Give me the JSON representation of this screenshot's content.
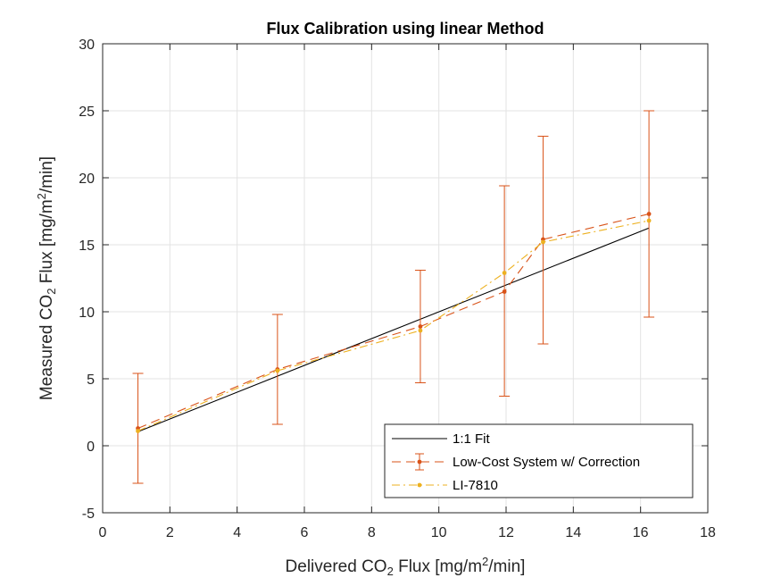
{
  "chart_data": {
    "type": "line",
    "title": "Flux Calibration using linear Method",
    "xlabel": {
      "prefix": "Delivered CO",
      "sub": "2",
      "mid": " Flux [mg/m",
      "sup": "2",
      "suffix": "/min]"
    },
    "ylabel": {
      "prefix": "Measured CO",
      "sub": "2",
      "mid": " Flux [mg/m",
      "sup": "2",
      "suffix": "/min]"
    },
    "xlim": [
      0,
      18
    ],
    "ylim": [
      -5,
      30
    ],
    "xticks": [
      0,
      2,
      4,
      6,
      8,
      10,
      12,
      14,
      16,
      18
    ],
    "yticks": [
      -5,
      0,
      5,
      10,
      15,
      20,
      25,
      30
    ],
    "grid": true,
    "legend_position": "bottom-right",
    "series": [
      {
        "name": "1:1 Fit",
        "style": "solid",
        "color": "#000000",
        "x": [
          1.05,
          16.25
        ],
        "y": [
          1.05,
          16.25
        ]
      },
      {
        "name": "Low-Cost System w/ Correction",
        "style": "dashed",
        "color": "#D95319",
        "marker": "dot",
        "x": [
          1.05,
          5.2,
          9.45,
          11.95,
          13.1,
          16.25
        ],
        "y": [
          1.3,
          5.7,
          8.9,
          11.5,
          15.4,
          17.3
        ],
        "err_low": [
          -2.8,
          1.6,
          4.7,
          3.7,
          7.6,
          9.6
        ],
        "err_high": [
          5.4,
          9.8,
          13.1,
          19.4,
          23.1,
          25.0
        ]
      },
      {
        "name": "LI-7810",
        "style": "dashdot",
        "color": "#EDB120",
        "marker": "dot",
        "x": [
          1.05,
          5.2,
          9.45,
          11.95,
          13.1,
          16.25
        ],
        "y": [
          1.1,
          5.6,
          8.6,
          12.9,
          15.2,
          16.8
        ]
      }
    ]
  }
}
